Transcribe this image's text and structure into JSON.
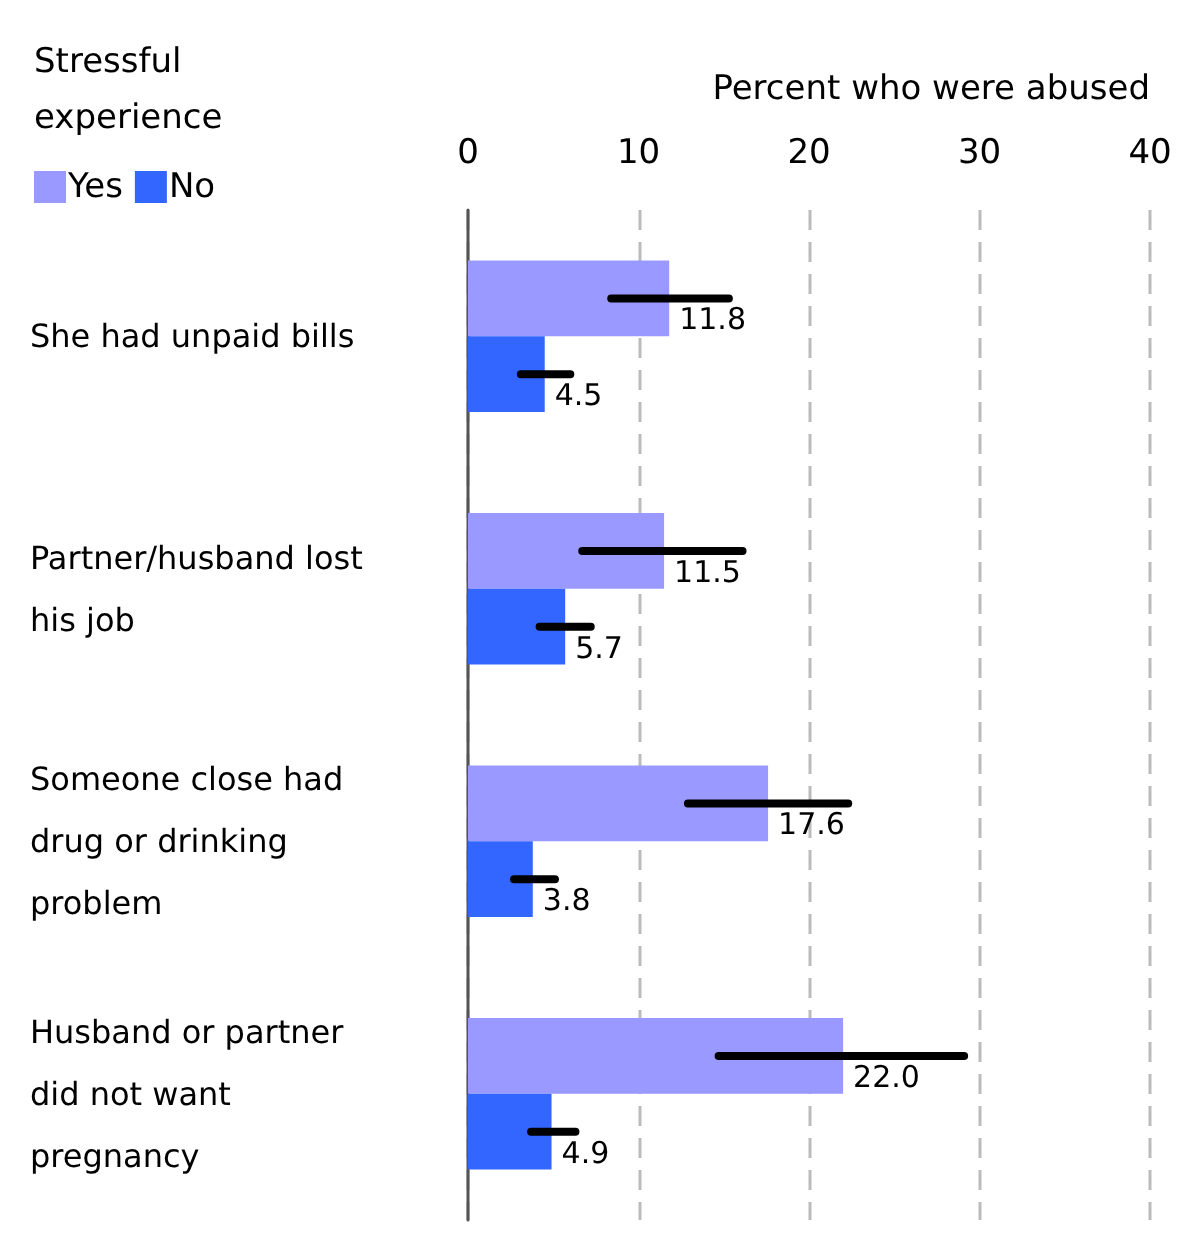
{
  "chart_data": {
    "type": "bar",
    "orientation": "horizontal",
    "xlabel": "Percent who were abused",
    "legend_title": "Stressful experience",
    "categories": [
      "She had unpaid bills",
      "Partner/husband lost his job",
      "Someone close had drug or drinking problem",
      "Husband or partner did not want pregnancy"
    ],
    "series": [
      {
        "name": "Yes",
        "color": "#9999ff",
        "values": [
          11.8,
          11.5,
          17.6,
          22.0
        ],
        "errors": [
          [
            8.4,
            15.3
          ],
          [
            6.7,
            16.1
          ],
          [
            12.9,
            22.3
          ],
          [
            14.7,
            29.1
          ]
        ],
        "value_labels": [
          "11.8",
          "11.5",
          "17.6",
          "22.0"
        ]
      },
      {
        "name": "No",
        "color": "#3366ff",
        "values": [
          4.5,
          5.7,
          3.8,
          4.9
        ],
        "errors": [
          [
            3.1,
            6.0
          ],
          [
            4.2,
            7.2
          ],
          [
            2.7,
            5.1
          ],
          [
            3.7,
            6.3
          ]
        ],
        "value_labels": [
          "4.5",
          "5.7",
          "3.8",
          "4.9"
        ]
      }
    ],
    "xlim": [
      0,
      40
    ],
    "xticks": [
      0,
      10,
      20,
      30,
      40
    ],
    "grid": "x",
    "legend": "top left"
  }
}
